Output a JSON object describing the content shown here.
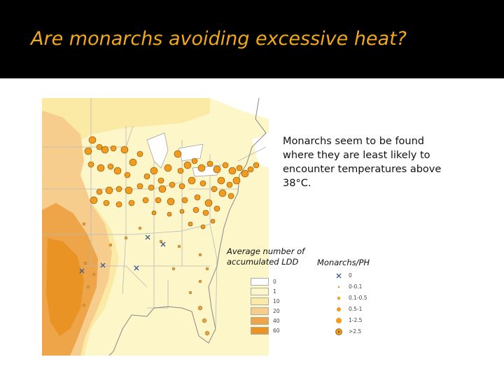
{
  "slide": {
    "title": "Are monarchs avoiding excessive heat?",
    "callout": "Monarchs seem to be found where they are least likely to encounter temperatures above 38°C."
  },
  "ldd_legend": {
    "title_line1": "Average number of",
    "title_line2": "accumulated LDD",
    "classes": [
      {
        "label": "0",
        "color": "#ffffff"
      },
      {
        "label": "1",
        "color": "#fdf6c8"
      },
      {
        "label": "10",
        "color": "#faeaa6"
      },
      {
        "label": "20",
        "color": "#f7cd8e"
      },
      {
        "label": "40",
        "color": "#eea54a"
      },
      {
        "label": "60",
        "color": "#e89324"
      }
    ]
  },
  "monarch_legend": {
    "title": "Monarchs/PH",
    "classes": [
      {
        "label": "0",
        "symbol": "x-icon"
      },
      {
        "label": "0-0.1",
        "symbol": "tiny-dot-icon"
      },
      {
        "label": "0.1-0.5",
        "symbol": "small-dot-icon"
      },
      {
        "label": "0.5-1",
        "symbol": "medium-dot-icon"
      },
      {
        "label": "1-2.5",
        "symbol": "large-dot-icon"
      },
      {
        "label": ">2.5",
        "symbol": "ringed-dot-icon"
      }
    ]
  },
  "colors": {
    "title": "#f0a818",
    "title_bar": "#000000",
    "marker_fill": "#f29b1f",
    "marker_ring": "#7a4a00"
  }
}
